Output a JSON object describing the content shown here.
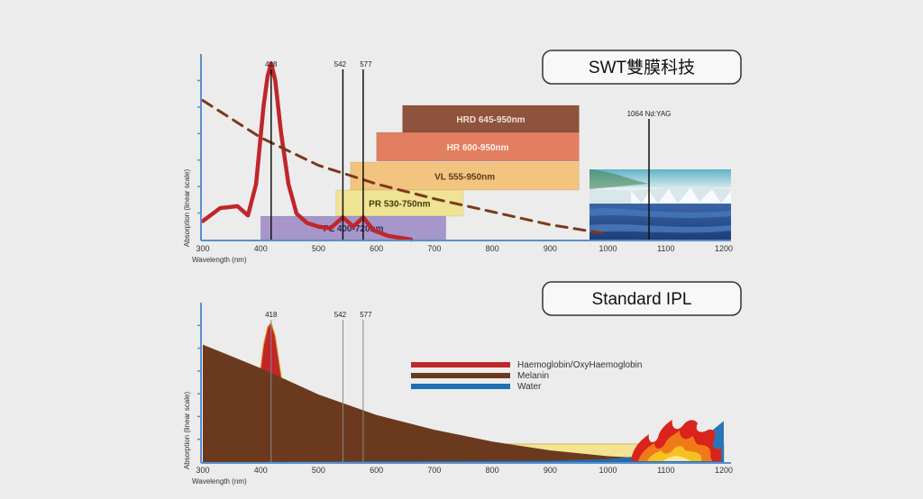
{
  "titles": {
    "top": "SWT雙膜科技",
    "bottom": "Standard IPL"
  },
  "axes": {
    "ylabel": "Absorption (linear scale)",
    "xlabel": "Wavelength (nm)",
    "xticks": [
      300,
      400,
      500,
      600,
      700,
      800,
      900,
      1000,
      1100,
      1200
    ]
  },
  "peaks": [
    "418",
    "542",
    "577"
  ],
  "nd_yag_label": "1064 Nd:YAG",
  "colors": {
    "haemoglobin": "#c0262a",
    "melanin": "#6b3a1e",
    "water": "#1f6fb5",
    "axis": "#5b8fc9"
  },
  "legend": [
    {
      "label": "Haemoglobin/OxyHaemoglobin",
      "color": "#c0262a"
    },
    {
      "label": "Melanin",
      "color": "#6b3a1e"
    },
    {
      "label": "Water",
      "color": "#1f6fb5"
    }
  ],
  "chart_data": [
    {
      "type": "area",
      "title": "SWT雙膜科技",
      "xlabel": "Wavelength (nm)",
      "ylabel": "Absorption (linear scale)",
      "xlim": [
        300,
        1200
      ],
      "ylim": [
        0,
        100
      ],
      "filter_bands": [
        {
          "label": "HRD 645-950nm",
          "start": 645,
          "end": 950,
          "color": "#8a4b34",
          "text_color": "#f2e2d4"
        },
        {
          "label": "HR 600-950nm",
          "start": 600,
          "end": 950,
          "color": "#e27a5a",
          "text_color": "#fdf0e6"
        },
        {
          "label": "VL 555-950nm",
          "start": 555,
          "end": 950,
          "color": "#f4c27a",
          "text_color": "#5a3a1a"
        },
        {
          "label": "PR 530-750nm",
          "start": 530,
          "end": 750,
          "color": "#f0e390",
          "text_color": "#4a3a10"
        },
        {
          "label": "PL 400-720nm",
          "start": 400,
          "end": 720,
          "color": "#9c88c4",
          "text_color": "#3a2a5a"
        }
      ],
      "series": [
        {
          "name": "Haemoglobin/OxyHaemoglobin",
          "x": [
            300,
            330,
            360,
            378,
            392,
            405,
            412,
            418,
            425,
            435,
            448,
            462,
            480,
            500,
            520,
            542,
            560,
            577,
            595,
            620,
            660
          ],
          "y": [
            10,
            17,
            18,
            13,
            30,
            72,
            88,
            95,
            86,
            58,
            30,
            14,
            9,
            7,
            6,
            12,
            7,
            12,
            5,
            2,
            0
          ]
        },
        {
          "name": "Melanin",
          "x": [
            300,
            400,
            500,
            600,
            700,
            800,
            900,
            1000
          ],
          "y": [
            75,
            55,
            40,
            30,
            22,
            15,
            8,
            3
          ]
        }
      ]
    },
    {
      "type": "area",
      "title": "Standard IPL",
      "xlabel": "Wavelength (nm)",
      "ylabel": "Absorption (linear scale)",
      "xlim": [
        300,
        1200
      ],
      "ylim": [
        0,
        100
      ],
      "filter_bands": [
        {
          "label": "",
          "start": 570,
          "end": 1200,
          "color": "#f4e38a",
          "text_color": "#333"
        }
      ],
      "series": [
        {
          "name": "Haemoglobin/OxyHaemoglobin",
          "x": [
            300,
            320,
            340,
            360,
            378,
            392,
            405,
            412,
            418,
            425,
            435,
            448,
            462,
            480,
            500,
            520,
            542,
            560,
            577,
            595,
            620
          ],
          "y": [
            10,
            16,
            10,
            17,
            8,
            40,
            80,
            92,
            95,
            86,
            60,
            24,
            10,
            7,
            6,
            5,
            11,
            6,
            10,
            3,
            0
          ]
        },
        {
          "name": "Melanin",
          "x": [
            300,
            400,
            500,
            600,
            700,
            800,
            900,
            1000,
            1100,
            1200
          ],
          "y": [
            80,
            64,
            46,
            32,
            22,
            14,
            8,
            4,
            2,
            1
          ]
        },
        {
          "name": "Water",
          "x": [
            300,
            900,
            1000,
            1100,
            1150,
            1200
          ],
          "y": [
            0,
            1,
            2,
            6,
            12,
            28
          ]
        }
      ]
    }
  ]
}
